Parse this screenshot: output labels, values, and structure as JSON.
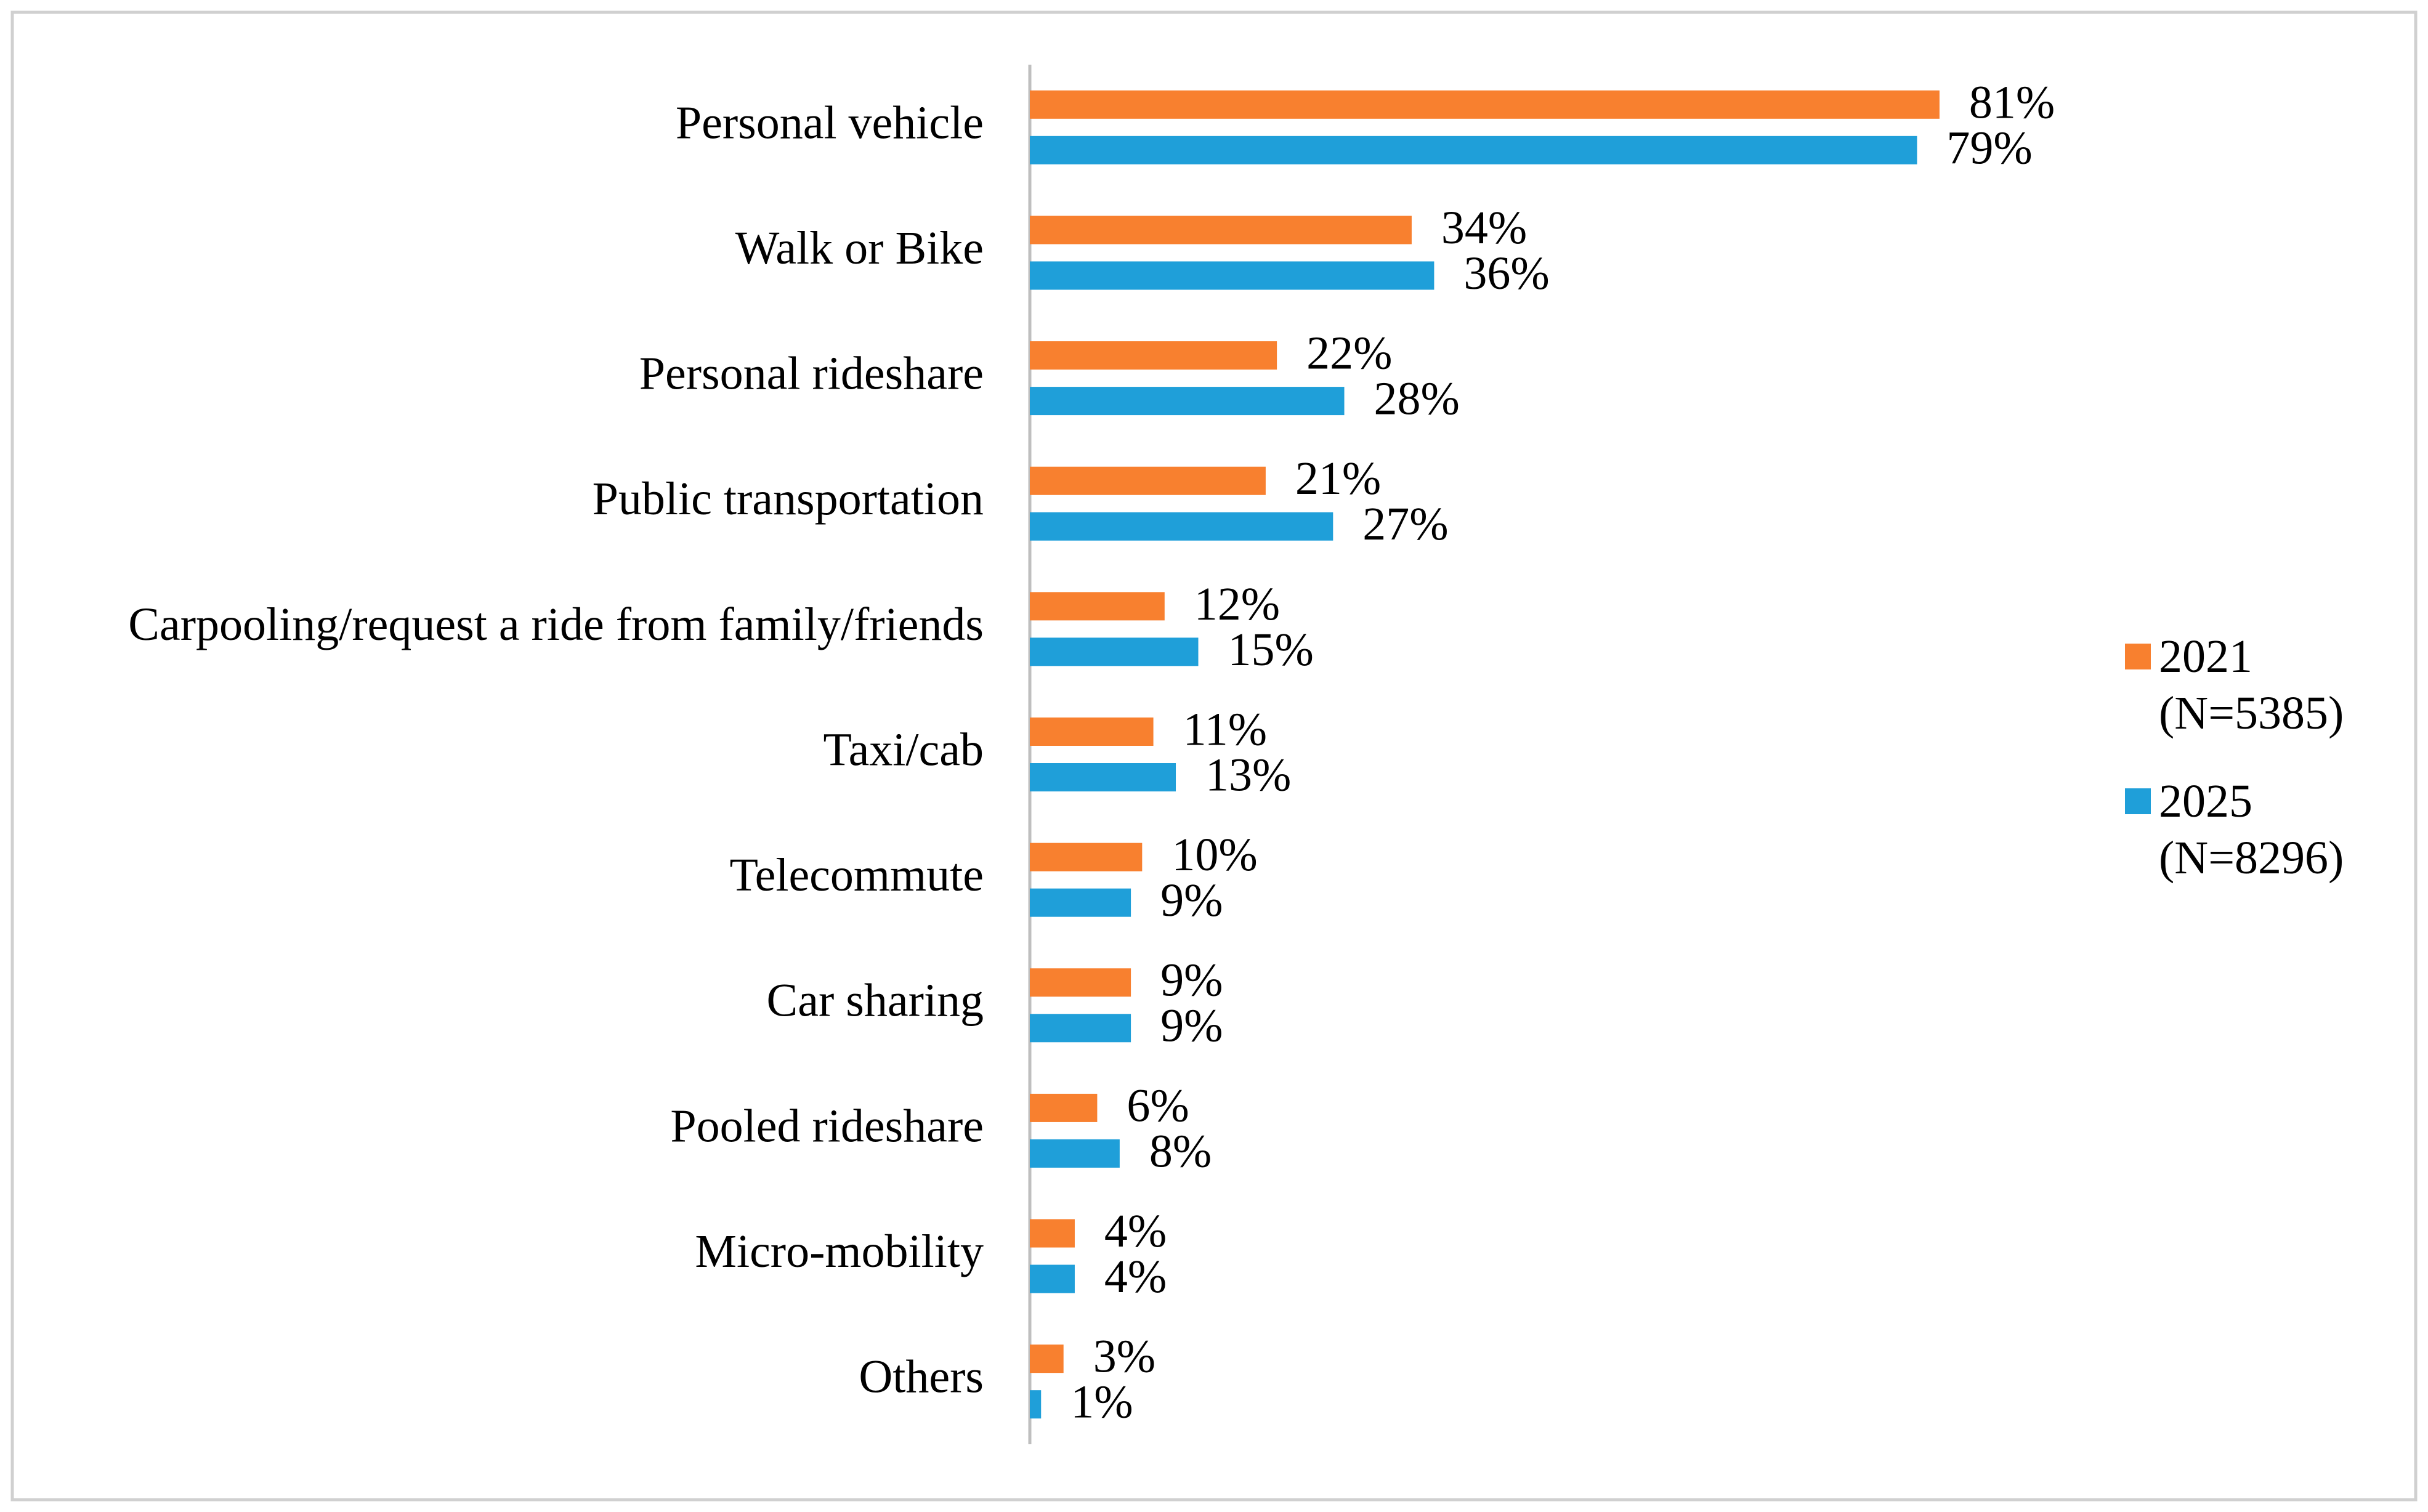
{
  "chart_data": {
    "type": "bar",
    "orientation": "horizontal",
    "categories": [
      "Personal vehicle",
      "Walk or Bike",
      "Personal rideshare",
      "Public transportation",
      "Carpooling/request a ride from family/friends",
      "Taxi/cab",
      "Telecommute",
      "Car sharing",
      "Pooled rideshare",
      "Micro-mobility",
      "Others"
    ],
    "series": [
      {
        "name": "2021 (N=5385)",
        "color": "#f8802f",
        "values": [
          81,
          34,
          22,
          21,
          12,
          11,
          10,
          9,
          6,
          4,
          3
        ],
        "value_labels": [
          "81%",
          "34%",
          "22%",
          "21%",
          "12%",
          "11%",
          "10%",
          "9%",
          "6%",
          "4%",
          "3%"
        ]
      },
      {
        "name": "2025 (N=8296)",
        "color": "#1f9fd9",
        "values": [
          79,
          36,
          28,
          27,
          15,
          13,
          9,
          9,
          8,
          4,
          1
        ],
        "value_labels": [
          "79%",
          "36%",
          "28%",
          "27%",
          "15%",
          "13%",
          "9%",
          "9%",
          "8%",
          "4%",
          "1%"
        ]
      }
    ],
    "xlim": [
      0,
      90
    ],
    "legend": "right"
  }
}
